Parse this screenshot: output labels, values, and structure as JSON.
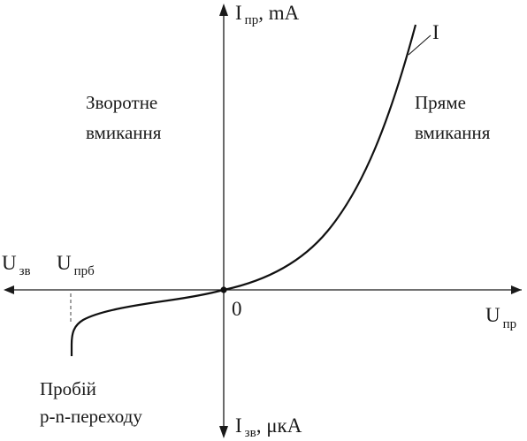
{
  "axes": {
    "y_top": {
      "main": "I",
      "sub": "пр",
      "unit": ", mA"
    },
    "y_bottom": {
      "main": "I",
      "sub": "зв",
      "unit": ", μкА"
    },
    "x_right": {
      "main": "U",
      "sub": "пр"
    },
    "x_left": {
      "main": "U",
      "sub": "зв"
    },
    "breakdown_voltage": {
      "main": "U",
      "sub": "прб"
    },
    "origin": "0"
  },
  "regions": {
    "reverse": {
      "line1": "Зворотне",
      "line2": "вмикання"
    },
    "forward": {
      "line1": "Пряме",
      "line2": "вмикання"
    },
    "breakdown": {
      "line1": "Пробій",
      "line2": "p-n-переходу"
    }
  },
  "curve_label": "I",
  "colors": {
    "ink": "#1a1a1a",
    "background": "#ffffff"
  }
}
